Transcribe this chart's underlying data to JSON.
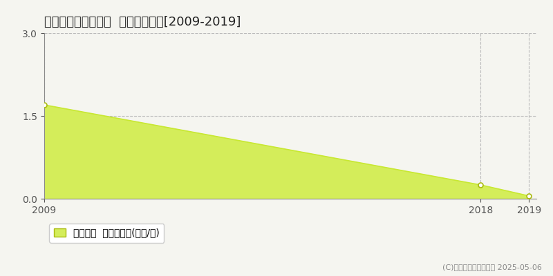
{
  "title": "久慈郡大子町下野宮  土地価格推移[2009-2019]",
  "years": [
    2009,
    2018,
    2019
  ],
  "values": [
    1.7,
    0.25,
    0.05
  ],
  "ylim": [
    0,
    3
  ],
  "yticks": [
    0,
    1.5,
    3
  ],
  "xticks": [
    2009,
    2018,
    2019
  ],
  "line_color": "#c8e832",
  "fill_color": "#d4ed5a",
  "marker_color": "#ffffff",
  "marker_edge_color": "#aabb10",
  "grid_color": "#bbbbbb",
  "bg_color": "#f5f5f0",
  "legend_label": "土地価格  平均坪単価(万円/坪)",
  "copyright_text": "(C)土地価格ドットコム 2025-05-06",
  "title_fontsize": 13,
  "axis_fontsize": 10,
  "legend_fontsize": 10
}
